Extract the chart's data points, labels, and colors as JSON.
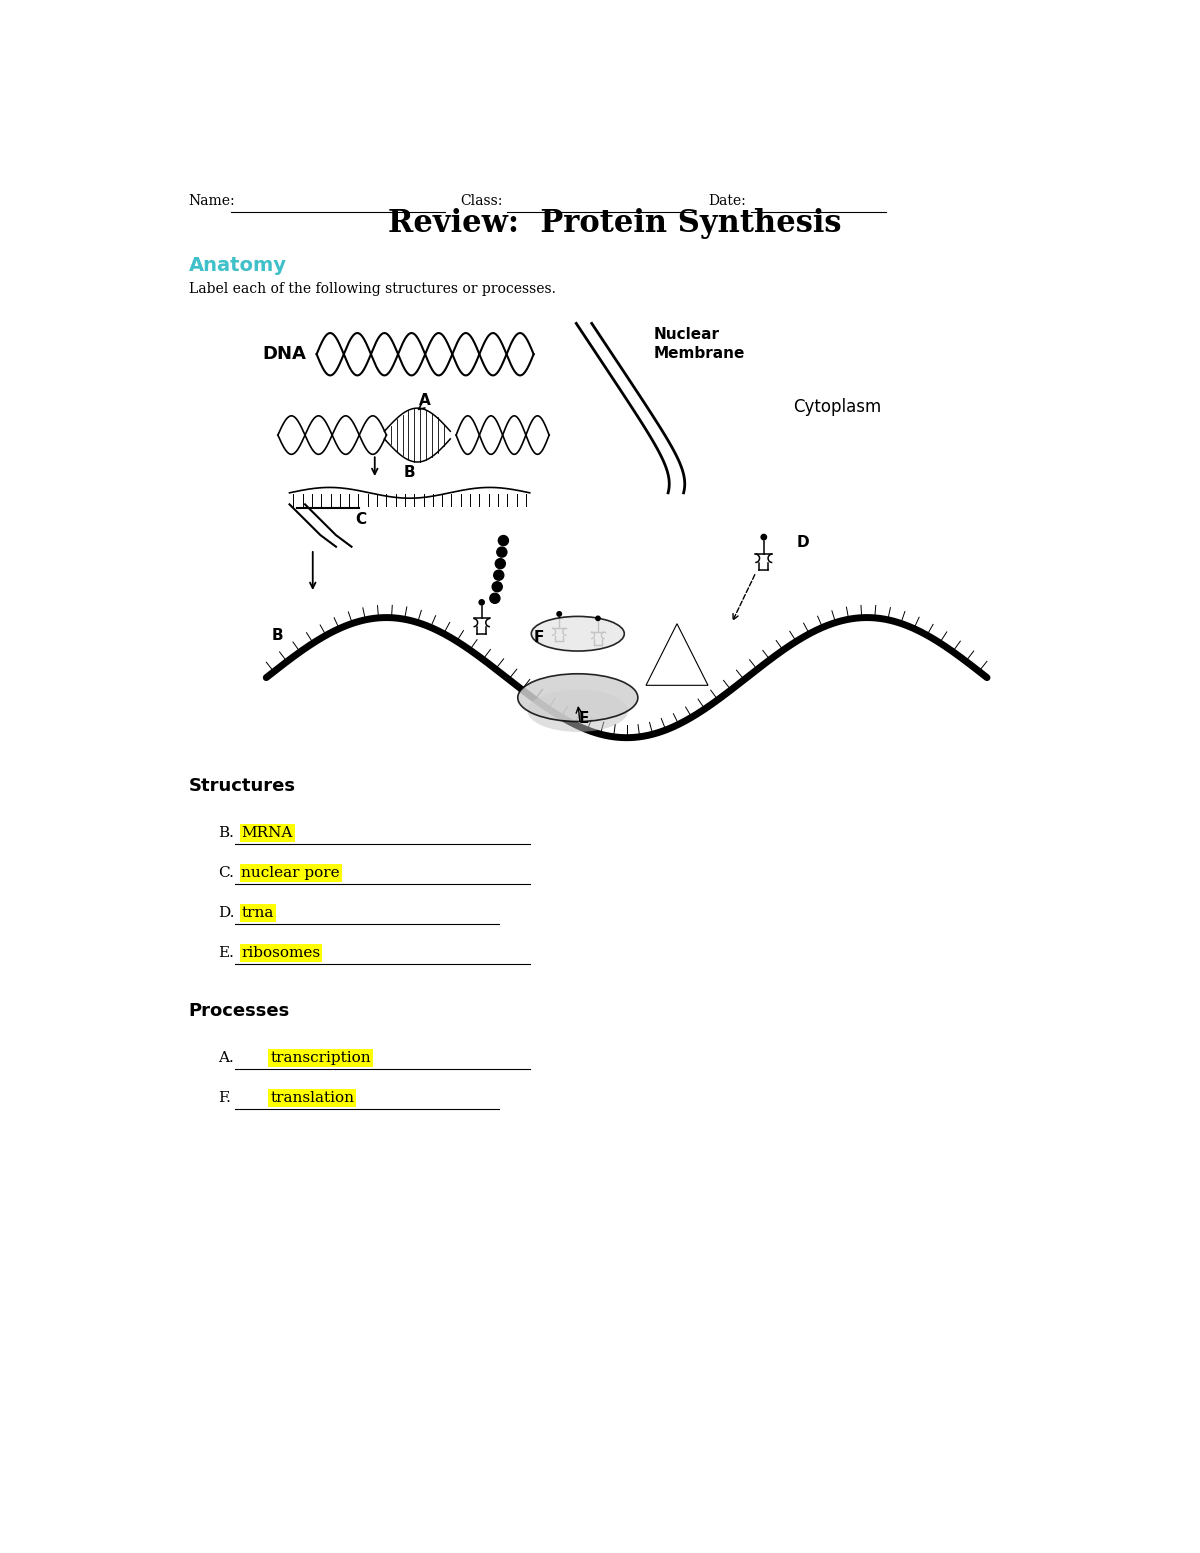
{
  "page_width": 12.0,
  "page_height": 15.53,
  "bg_color": "#ffffff",
  "title": "Review:  Protein Synthesis",
  "title_fontsize": 22,
  "anatomy_heading": "Anatomy",
  "anatomy_heading_color": "#40c0c8",
  "anatomy_subtext": "Label each of the following structures or processes.",
  "nuclear_membrane_label": "Nuclear\nMembrane",
  "cytoplasm_label": "Cytoplasm",
  "dna_label": "DNA",
  "structures_heading": "Structures",
  "struct_B_answer": "MRNA",
  "struct_C_answer": "nuclear pore",
  "struct_D_answer": "trna",
  "struct_E_answer": "ribosomes",
  "processes_heading": "Processes",
  "proc_A_answer": "transcription",
  "proc_F_answer": "translation",
  "highlight_color": "#ffff00",
  "answer_fontsize": 11,
  "label_fontsize": 11,
  "heading_fontsize": 13
}
